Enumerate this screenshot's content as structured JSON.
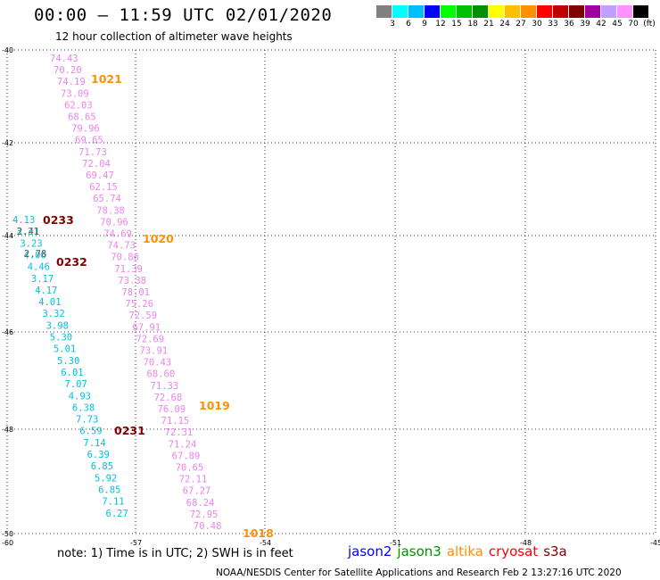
{
  "header": {
    "title": "00:00 – 11:59 UTC 02/01/2020",
    "subtitle": "12 hour collection of altimeter wave heights"
  },
  "legend": {
    "colors": [
      "#808080",
      "#00ffff",
      "#00bfff",
      "#0000ff",
      "#00ff00",
      "#00c000",
      "#009000",
      "#ffff00",
      "#ffc000",
      "#ff9000",
      "#ff0000",
      "#c00000",
      "#800000",
      "#a000a0",
      "#c0a0ff",
      "#ff90ff",
      "#000000"
    ],
    "labels": [
      "3",
      "6",
      "9",
      "12",
      "15",
      "18",
      "21",
      "24",
      "27",
      "30",
      "33",
      "36",
      "39",
      "42",
      "45",
      "70",
      "(ft)"
    ]
  },
  "axes": {
    "y_ticks": [
      "-40",
      "-42",
      "-44",
      "-46",
      "-48",
      "-50"
    ],
    "x_ticks": [
      "-60",
      "-57",
      "-54",
      "-51",
      "-48",
      "-45"
    ]
  },
  "tracks": [
    {
      "id": "cryosat-main",
      "color": "#ee82ee",
      "values": [
        "74.43",
        "70.20",
        "74.19",
        "73.09",
        "62.03",
        "68.65",
        "79.96",
        "69.65",
        "71.73",
        "72.04",
        "69.47",
        "62.15",
        "65.74",
        "78.38",
        "70.96",
        "74.69",
        "74.73",
        "70.86",
        "71.39",
        "73.38",
        "78.01",
        "75.26",
        "72.59",
        "67.91",
        "72.69",
        "73.91",
        "70.43",
        "68.60",
        "71.33",
        "72.68",
        "76.09",
        "71.15",
        "72.31",
        "71.24",
        "67.89",
        "70.65",
        "72.11",
        "67.27",
        "68.24",
        "72.95",
        "70.48"
      ]
    },
    {
      "id": "cyan-track",
      "color": "#00c0e0",
      "values": [
        "4.13",
        "3.21",
        "3.23",
        "4.06",
        "4.46",
        "3.17",
        "4.17",
        "4.01",
        "3.32",
        "3.98",
        "5.30",
        "5.01",
        "5.30",
        "6.01",
        "7.07",
        "4.93",
        "6.38",
        "7.73",
        "6.59",
        "7.14",
        "6.39",
        "6.85",
        "5.92",
        "6.85",
        "7.11",
        "6.27"
      ]
    },
    {
      "id": "gray-track",
      "color": "#606060",
      "values": [
        "2.41",
        "2.78"
      ]
    }
  ],
  "times": {
    "pass_labels": [
      "1021",
      "0233",
      "1020",
      "0232",
      "1019",
      "0231",
      "1018"
    ]
  },
  "footer": {
    "note": "note:  1) Time is in UTC;  2) SWH is in feet",
    "satellites": [
      {
        "name": "jason2",
        "color": "#0000ff"
      },
      {
        "name": "jason3",
        "color": "#009000"
      },
      {
        "name": "altika",
        "color": "#ff9000"
      },
      {
        "name": "cryosat",
        "color": "#ff0000"
      },
      {
        "name": "s3a",
        "color": "#800000"
      }
    ],
    "credit": "NOAA/NESDIS Center for Satellite Applications and Research     Feb  2 13:27:16 UTC 2020"
  }
}
